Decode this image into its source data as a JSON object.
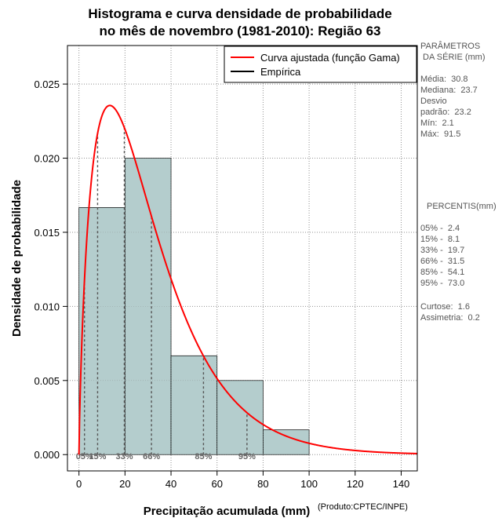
{
  "chart_data": {
    "type": "bar",
    "title_line1": "Histograma e curva densidade de probabilidade",
    "title_line2": "no mês de novembro (1981-2010): Região 63",
    "xlabel": "Precipitação acumulada (mm)",
    "ylabel": "Densidade de probabilidade",
    "xlim": [
      -5,
      147
    ],
    "ylim": [
      -0.0011,
      0.0276
    ],
    "x_ticks": [
      0,
      20,
      40,
      60,
      80,
      100,
      120,
      140
    ],
    "y_ticks": [
      0.0,
      0.005,
      0.01,
      0.015,
      0.02,
      0.025
    ],
    "y_tick_labels": [
      "0.000",
      "0.005",
      "0.010",
      "0.015",
      "0.020",
      "0.025"
    ],
    "bins": [
      {
        "x0": 0,
        "x1": 20,
        "density": 0.01667
      },
      {
        "x0": 20,
        "x1": 40,
        "density": 0.02
      },
      {
        "x0": 40,
        "x1": 60,
        "density": 0.00667
      },
      {
        "x0": 60,
        "x1": 80,
        "density": 0.005
      },
      {
        "x0": 80,
        "x1": 100,
        "density": 0.00167
      }
    ],
    "gamma_fit": {
      "shape": 1.77,
      "scale": 17.4,
      "x_start": 0,
      "x_end": 147
    },
    "percentile_lines": [
      {
        "label": "05%",
        "x": 2.4
      },
      {
        "label": "15%",
        "x": 8.1
      },
      {
        "label": "33%",
        "x": 19.7
      },
      {
        "label": "66%",
        "x": 31.5
      },
      {
        "label": "85%",
        "x": 54.1
      },
      {
        "label": "95%",
        "x": 73.0
      }
    ],
    "legend": [
      {
        "label": "Curva ajustada (função Gama)",
        "color": "#ff0000"
      },
      {
        "label": "Empírica",
        "color": "#000000"
      }
    ],
    "legend_position": "top-right",
    "grid": true,
    "colors": {
      "bar_fill": "#b4cdcd",
      "curve": "#ff0000",
      "grid": "#999999",
      "percentile_line": "#555555",
      "percentile_label": "#666666"
    }
  },
  "side_panel": {
    "params_title": "PARÂMETROS\n DA SÉRIE (mm)",
    "params": "Média:  30.8\nMediana:  23.7\nDesvio\npadrão:  23.2\nMín:  2.1\nMáx:  91.5",
    "percentis_title": "PERCENTIS(mm)",
    "percentis": "05% -  2.4\n15% -  8.1\n33% -  19.7\n66% -  31.5\n85% -  54.1\n95% -  73.0",
    "stats": "Curtose:  1.6\nAssimetria:  0.2"
  },
  "credit": "(Produto:CPTEC/INPE)"
}
